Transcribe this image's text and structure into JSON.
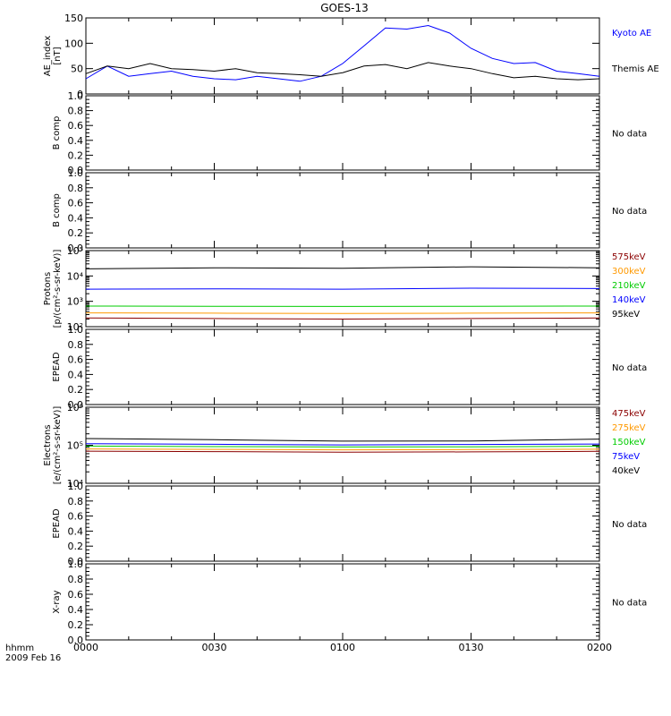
{
  "title": "GOES-13",
  "x_axis": {
    "unit_label": "hhmm",
    "date_label": "2009 Feb 16",
    "tick_labels": [
      "0000",
      "0030",
      "0100",
      "0130",
      "0200"
    ]
  },
  "chart_data": [
    {
      "type": "line",
      "ylabel": "AE_index\n[nT]",
      "ylim": [
        0,
        150
      ],
      "yticks": [
        "0",
        "50",
        "100",
        "150"
      ],
      "x": [
        0,
        5,
        10,
        15,
        20,
        25,
        30,
        35,
        40,
        45,
        50,
        55,
        60,
        65,
        70,
        75,
        80,
        85,
        90,
        95,
        100,
        105,
        110,
        115,
        120
      ],
      "series": [
        {
          "name": "Kyoto AE",
          "color": "#0000ff",
          "values": [
            30,
            55,
            35,
            40,
            45,
            35,
            30,
            28,
            35,
            30,
            25,
            35,
            60,
            95,
            130,
            128,
            135,
            120,
            90,
            70,
            60,
            62,
            45,
            40,
            35
          ]
        },
        {
          "name": "Themis AE",
          "color": "#000000",
          "values": [
            40,
            55,
            50,
            60,
            50,
            48,
            45,
            50,
            42,
            40,
            38,
            35,
            42,
            55,
            58,
            50,
            62,
            55,
            50,
            40,
            32,
            35,
            30,
            28,
            30
          ]
        }
      ]
    },
    {
      "type": "line",
      "ylabel": "B comp",
      "ylim": [
        0,
        1
      ],
      "yticks": [
        "0.0",
        "0.2",
        "0.4",
        "0.6",
        "0.8",
        "1.0"
      ],
      "series": [],
      "note": "No data"
    },
    {
      "type": "line",
      "ylabel": "B comp",
      "ylim": [
        0,
        1
      ],
      "yticks": [
        "0.0",
        "0.2",
        "0.4",
        "0.6",
        "0.8",
        "1.0"
      ],
      "series": [],
      "note": "No data"
    },
    {
      "type": "line",
      "ylabel": "Protons\n[p/(cm²-s-sr-keV)]",
      "ylim": [
        100,
        100000
      ],
      "log_scale": true,
      "yticks": [
        "10²",
        "10³",
        "10⁴",
        "10⁵"
      ],
      "x": [
        0,
        30,
        60,
        90,
        120
      ],
      "series": [
        {
          "name": "575keV",
          "color": "#8b0000",
          "values": [
            220,
            210,
            200,
            210,
            220
          ]
        },
        {
          "name": "300keV",
          "color": "#ff9900",
          "values": [
            350,
            340,
            330,
            340,
            350
          ]
        },
        {
          "name": "210keV",
          "color": "#00cc00",
          "values": [
            650,
            640,
            630,
            640,
            650
          ]
        },
        {
          "name": "140keV",
          "color": "#0000ff",
          "values": [
            3000,
            3100,
            3000,
            3300,
            3200
          ]
        },
        {
          "name": "95keV",
          "color": "#000000",
          "values": [
            19000,
            21000,
            20000,
            23000,
            21000
          ]
        }
      ]
    },
    {
      "type": "line",
      "ylabel": "EPEAD",
      "ylim": [
        0,
        1
      ],
      "yticks": [
        "0.0",
        "0.2",
        "0.4",
        "0.6",
        "0.8",
        "1.0"
      ],
      "series": [],
      "note": "No data"
    },
    {
      "type": "line",
      "ylabel": "Electrons\n[e/(cm²-s-sr-keV)]",
      "ylim": [
        10000,
        1000000
      ],
      "log_scale": true,
      "yticks": [
        "10⁴",
        "10⁵",
        "10⁶"
      ],
      "x": [
        0,
        30,
        60,
        90,
        120
      ],
      "series": [
        {
          "name": "475keV",
          "color": "#8b0000",
          "values": [
            70000,
            68000,
            66000,
            67000,
            69000
          ]
        },
        {
          "name": "275keV",
          "color": "#ff9900",
          "values": [
            80000,
            78000,
            76000,
            77000,
            79000
          ]
        },
        {
          "name": "150keV",
          "color": "#00cc00",
          "values": [
            95000,
            92000,
            90000,
            91000,
            94000
          ]
        },
        {
          "name": "75keV",
          "color": "#0000ff",
          "values": [
            110000,
            106000,
            102000,
            105000,
            108000
          ]
        },
        {
          "name": "40keV",
          "color": "#000000",
          "values": [
            150000,
            140000,
            128000,
            130000,
            145000
          ]
        }
      ]
    },
    {
      "type": "line",
      "ylabel": "EPEAD",
      "ylim": [
        0,
        1
      ],
      "yticks": [
        "0.0",
        "0.2",
        "0.4",
        "0.6",
        "0.8",
        "1.0"
      ],
      "series": [],
      "note": "No data"
    },
    {
      "type": "line",
      "ylabel": "X-ray",
      "ylim": [
        0,
        1
      ],
      "yticks": [
        "0.0",
        "0.2",
        "0.4",
        "0.6",
        "0.8",
        "1.0"
      ],
      "series": [],
      "note": "No data"
    }
  ]
}
